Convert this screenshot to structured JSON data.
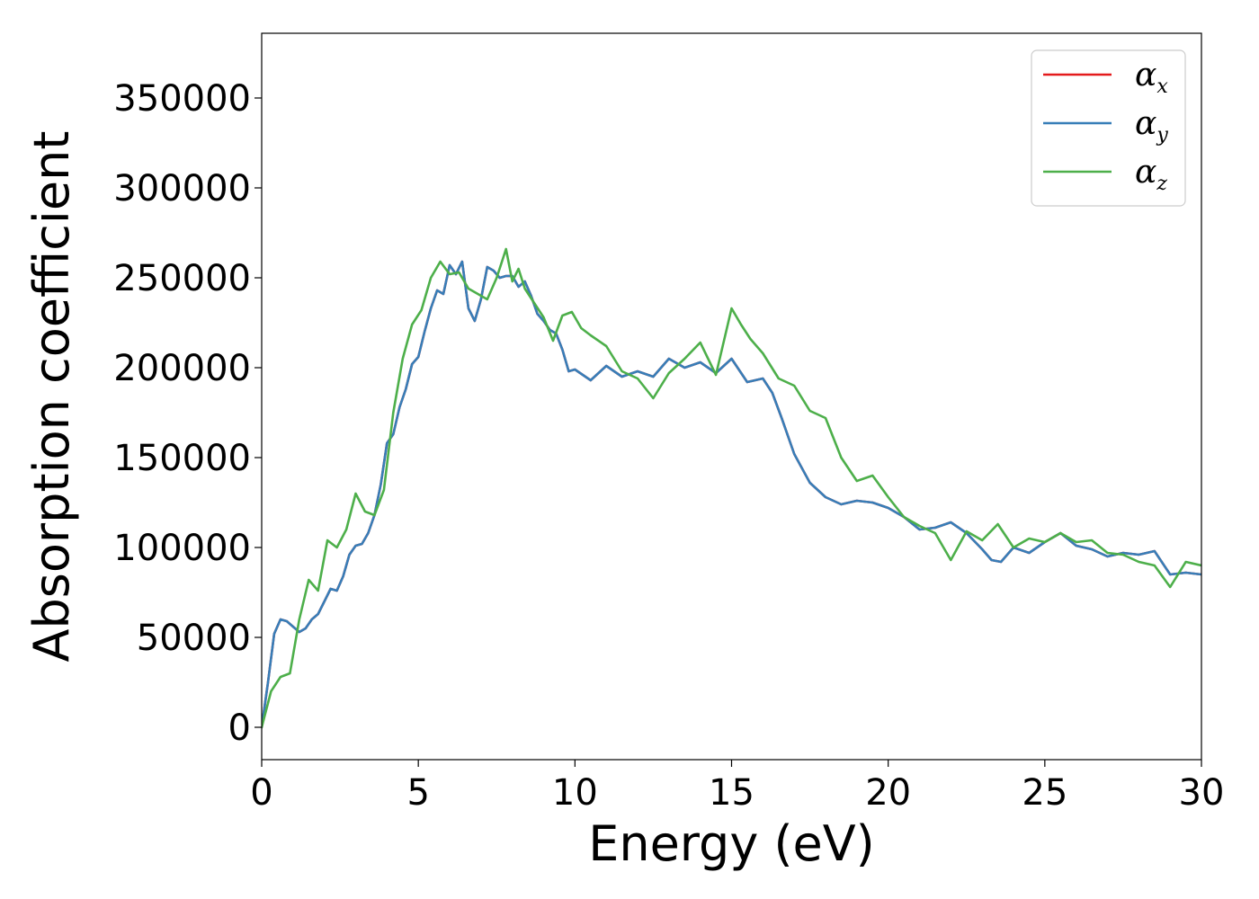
{
  "chart_data": {
    "type": "line",
    "title": "",
    "xlabel": "Energy (eV)",
    "ylabel": "Absorption coefficient",
    "xlim": [
      0,
      30
    ],
    "ylim": [
      -18000,
      386000
    ],
    "xticks": [
      0,
      5,
      10,
      15,
      20,
      25,
      30
    ],
    "yticks": [
      0,
      50000,
      100000,
      150000,
      200000,
      250000,
      300000,
      350000
    ],
    "grid": false,
    "legend": {
      "placement": "top-right"
    },
    "series": [
      {
        "name": "α_x",
        "symbol": "α",
        "subscript": "x",
        "color": "#e41a1c",
        "x": [
          0,
          0.2,
          0.4,
          0.6,
          0.8,
          1.0,
          1.2,
          1.4,
          1.6,
          1.8,
          2.0,
          2.2,
          2.4,
          2.6,
          2.8,
          3.0,
          3.2,
          3.4,
          3.6,
          3.8,
          4.0,
          4.2,
          4.4,
          4.6,
          4.8,
          5.0,
          5.2,
          5.4,
          5.6,
          5.8,
          6.0,
          6.2,
          6.4,
          6.6,
          6.8,
          7.0,
          7.2,
          7.4,
          7.6,
          7.8,
          8.0,
          8.2,
          8.4,
          8.6,
          8.8,
          9.0,
          9.2,
          9.4,
          9.6,
          9.8,
          10.0,
          10.5,
          11.0,
          11.5,
          12.0,
          12.5,
          13.0,
          13.5,
          14.0,
          14.5,
          15.0,
          15.5,
          16.0,
          16.3,
          16.6,
          17.0,
          17.5,
          18.0,
          18.5,
          19.0,
          19.5,
          20.0,
          20.5,
          21.0,
          21.5,
          22.0,
          22.5,
          23.0,
          23.3,
          23.6,
          24.0,
          24.5,
          25.0,
          25.5,
          26.0,
          26.5,
          27.0,
          27.5,
          28.0,
          28.5,
          29.0,
          29.5,
          30.0
        ],
        "y": [
          0,
          25000,
          52000,
          60000,
          59000,
          56000,
          53000,
          55000,
          60000,
          63000,
          70000,
          77000,
          76000,
          84000,
          96000,
          101000,
          102000,
          108000,
          118000,
          135000,
          158000,
          163000,
          178000,
          188000,
          202000,
          206000,
          220000,
          233000,
          243000,
          241000,
          257000,
          252000,
          259000,
          233000,
          226000,
          238000,
          256000,
          254000,
          250000,
          251000,
          251000,
          245000,
          248000,
          240000,
          230000,
          226000,
          221000,
          219000,
          210000,
          198000,
          199000,
          193000,
          201000,
          195000,
          198000,
          195000,
          205000,
          200000,
          203000,
          197000,
          205000,
          192000,
          194000,
          186000,
          172000,
          152000,
          136000,
          128000,
          124000,
          126000,
          125000,
          122000,
          117000,
          110000,
          111000,
          114000,
          108000,
          99000,
          93000,
          92000,
          100000,
          97000,
          103000,
          108000,
          101000,
          99000,
          95000,
          97000,
          96000,
          98000,
          85000,
          86000,
          85000
        ]
      },
      {
        "name": "α_y",
        "symbol": "α",
        "subscript": "y",
        "color": "#377eb8",
        "x": [
          0,
          0.2,
          0.4,
          0.6,
          0.8,
          1.0,
          1.2,
          1.4,
          1.6,
          1.8,
          2.0,
          2.2,
          2.4,
          2.6,
          2.8,
          3.0,
          3.2,
          3.4,
          3.6,
          3.8,
          4.0,
          4.2,
          4.4,
          4.6,
          4.8,
          5.0,
          5.2,
          5.4,
          5.6,
          5.8,
          6.0,
          6.2,
          6.4,
          6.6,
          6.8,
          7.0,
          7.2,
          7.4,
          7.6,
          7.8,
          8.0,
          8.2,
          8.4,
          8.6,
          8.8,
          9.0,
          9.2,
          9.4,
          9.6,
          9.8,
          10.0,
          10.5,
          11.0,
          11.5,
          12.0,
          12.5,
          13.0,
          13.5,
          14.0,
          14.5,
          15.0,
          15.5,
          16.0,
          16.3,
          16.6,
          17.0,
          17.5,
          18.0,
          18.5,
          19.0,
          19.5,
          20.0,
          20.5,
          21.0,
          21.5,
          22.0,
          22.5,
          23.0,
          23.3,
          23.6,
          24.0,
          24.5,
          25.0,
          25.5,
          26.0,
          26.5,
          27.0,
          27.5,
          28.0,
          28.5,
          29.0,
          29.5,
          30.0
        ],
        "y": [
          0,
          25000,
          52000,
          60000,
          59000,
          56000,
          53000,
          55000,
          60000,
          63000,
          70000,
          77000,
          76000,
          84000,
          96000,
          101000,
          102000,
          108000,
          118000,
          135000,
          158000,
          163000,
          178000,
          188000,
          202000,
          206000,
          220000,
          233000,
          243000,
          241000,
          257000,
          252000,
          259000,
          233000,
          226000,
          238000,
          256000,
          254000,
          250000,
          251000,
          251000,
          245000,
          248000,
          240000,
          230000,
          226000,
          221000,
          219000,
          210000,
          198000,
          199000,
          193000,
          201000,
          195000,
          198000,
          195000,
          205000,
          200000,
          203000,
          197000,
          205000,
          192000,
          194000,
          186000,
          172000,
          152000,
          136000,
          128000,
          124000,
          126000,
          125000,
          122000,
          117000,
          110000,
          111000,
          114000,
          108000,
          99000,
          93000,
          92000,
          100000,
          97000,
          103000,
          108000,
          101000,
          99000,
          95000,
          97000,
          96000,
          98000,
          85000,
          86000,
          85000
        ]
      },
      {
        "name": "α_z",
        "symbol": "α",
        "subscript": "z",
        "color": "#4daf4a",
        "x": [
          0,
          0.3,
          0.6,
          0.9,
          1.2,
          1.5,
          1.8,
          2.1,
          2.4,
          2.7,
          3.0,
          3.3,
          3.6,
          3.9,
          4.2,
          4.5,
          4.8,
          5.1,
          5.4,
          5.7,
          6.0,
          6.3,
          6.6,
          6.9,
          7.2,
          7.5,
          7.8,
          8.0,
          8.2,
          8.4,
          8.7,
          9.0,
          9.3,
          9.6,
          9.9,
          10.2,
          10.5,
          11.0,
          11.5,
          12.0,
          12.5,
          13.0,
          13.5,
          14.0,
          14.5,
          15.0,
          15.3,
          15.6,
          16.0,
          16.5,
          17.0,
          17.5,
          18.0,
          18.5,
          19.0,
          19.5,
          20.0,
          20.5,
          21.0,
          21.5,
          22.0,
          22.5,
          23.0,
          23.5,
          24.0,
          24.5,
          25.0,
          25.5,
          26.0,
          26.5,
          27.0,
          27.5,
          28.0,
          28.5,
          29.0,
          29.5,
          30.0
        ],
        "y": [
          0,
          20000,
          28000,
          30000,
          60000,
          82000,
          76000,
          104000,
          100000,
          110000,
          130000,
          120000,
          118000,
          132000,
          175000,
          205000,
          224000,
          232000,
          250000,
          259000,
          252000,
          253000,
          244000,
          241000,
          238000,
          250000,
          266000,
          248000,
          255000,
          244000,
          236000,
          228000,
          215000,
          229000,
          231000,
          222000,
          218000,
          212000,
          198000,
          194000,
          183000,
          197000,
          205000,
          214000,
          196000,
          233000,
          224000,
          216000,
          208000,
          194000,
          190000,
          176000,
          172000,
          150000,
          137000,
          140000,
          128000,
          117000,
          112000,
          108000,
          93000,
          109000,
          104000,
          113000,
          100000,
          105000,
          103000,
          108000,
          103000,
          104000,
          97000,
          96000,
          92000,
          90000,
          78000,
          92000,
          90000
        ]
      }
    ]
  }
}
